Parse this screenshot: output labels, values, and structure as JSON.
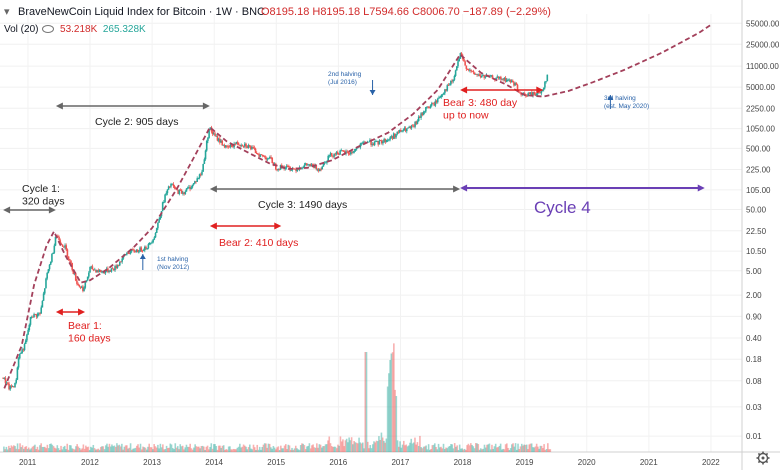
{
  "header": {
    "title": "BraveNewCoin Liquid Index for Bitcoin · 1W · BNC",
    "ohlc": "O8195.18  H8195.18  L7594.66  C8006.70  −187.89 (−2.29%)",
    "volume_label": "Vol (20)",
    "volume_value_1": "53.218K",
    "volume_value_2": "265.328K",
    "toggle_icon": "chevron-toggle-icon"
  },
  "colors": {
    "up": "#26a69a",
    "down": "#ef5350",
    "cycle_arrow": "#666666",
    "bear_arrow": "#e02020",
    "cycle4_arrow": "#6a3fb5",
    "trend_curve": "#a3405b",
    "halving_text": "#2962a8"
  },
  "chart_data": {
    "type": "candlestick",
    "title": "BraveNewCoin Liquid Index for Bitcoin",
    "y_scale": "log",
    "x_range": [
      2010.55,
      2022.5
    ],
    "y_range_log": [
      0.0055,
      78000
    ],
    "y_tick_labels": [
      "55000.00",
      "25000.00",
      "11000.00",
      "5000.00",
      "2250.00",
      "1050.00",
      "500.00",
      "225.00",
      "105.00",
      "50.00",
      "22.50",
      "10.50",
      "5.00",
      "2.00",
      "0.90",
      "0.40",
      "0.18",
      "0.08",
      "0.03",
      "0.01"
    ],
    "x_tick_labels": [
      "2011",
      "2012",
      "2013",
      "2014",
      "2015",
      "2016",
      "2017",
      "2018",
      "2019",
      "2020",
      "2021",
      "2022"
    ],
    "price_path": [
      [
        2010.6,
        0.09
      ],
      [
        2010.7,
        0.06
      ],
      [
        2010.8,
        0.07
      ],
      [
        2010.85,
        0.2
      ],
      [
        2010.95,
        0.3
      ],
      [
        2011.05,
        0.9
      ],
      [
        2011.2,
        1.0
      ],
      [
        2011.3,
        4
      ],
      [
        2011.4,
        10
      ],
      [
        2011.45,
        20
      ],
      [
        2011.52,
        15
      ],
      [
        2011.6,
        12
      ],
      [
        2011.7,
        6
      ],
      [
        2011.8,
        3
      ],
      [
        2011.9,
        2.5
      ],
      [
        2012.0,
        5.5
      ],
      [
        2012.2,
        4.8
      ],
      [
        2012.4,
        5.5
      ],
      [
        2012.6,
        10
      ],
      [
        2012.8,
        11
      ],
      [
        2012.95,
        13
      ],
      [
        2013.05,
        20
      ],
      [
        2013.2,
        80
      ],
      [
        2013.3,
        130
      ],
      [
        2013.4,
        100
      ],
      [
        2013.5,
        95
      ],
      [
        2013.65,
        125
      ],
      [
        2013.8,
        200
      ],
      [
        2013.92,
        1100
      ],
      [
        2014.0,
        800
      ],
      [
        2014.1,
        650
      ],
      [
        2014.2,
        500
      ],
      [
        2014.35,
        600
      ],
      [
        2014.5,
        580
      ],
      [
        2014.6,
        500
      ],
      [
        2014.75,
        380
      ],
      [
        2014.9,
        340
      ],
      [
        2015.0,
        240
      ],
      [
        2015.1,
        250
      ],
      [
        2015.2,
        240
      ],
      [
        2015.3,
        230
      ],
      [
        2015.5,
        270
      ],
      [
        2015.7,
        230
      ],
      [
        2015.85,
        380
      ],
      [
        2016.0,
        430
      ],
      [
        2016.2,
        420
      ],
      [
        2016.45,
        650
      ],
      [
        2016.6,
        600
      ],
      [
        2016.8,
        700
      ],
      [
        2017.0,
        950
      ],
      [
        2017.2,
        1100
      ],
      [
        2017.4,
        2200
      ],
      [
        2017.55,
        2700
      ],
      [
        2017.7,
        4300
      ],
      [
        2017.85,
        6500
      ],
      [
        2017.96,
        17000
      ],
      [
        2018.05,
        11000
      ],
      [
        2018.15,
        8500
      ],
      [
        2018.3,
        7500
      ],
      [
        2018.45,
        7200
      ],
      [
        2018.6,
        6800
      ],
      [
        2018.75,
        6400
      ],
      [
        2018.85,
        5600
      ],
      [
        2018.92,
        3800
      ],
      [
        2019.0,
        3700
      ],
      [
        2019.15,
        3900
      ],
      [
        2019.25,
        4000
      ],
      [
        2019.3,
        5000
      ],
      [
        2019.35,
        7000
      ],
      [
        2019.38,
        8000
      ]
    ],
    "volume_spike_year": 2016.85
  },
  "annotations": {
    "cycle1": "Cycle 1:\n320 days",
    "cycle2": "Cycle 2: 905 days",
    "cycle3": "Cycle 3: 1490  days",
    "cycle4": "Cycle 4",
    "bear1": "Bear 1:\n160 days",
    "bear2": "Bear 2: 410 days",
    "bear3": "Bear 3: 480 day\nup to now",
    "halving1": "1st halving\n(Nov 2012)",
    "halving2": "2nd halving\n(Jul 2016)",
    "halving3": "3rd halving\n(est. May 2020)"
  },
  "toolbar": {
    "settings_icon": "gear-icon"
  }
}
